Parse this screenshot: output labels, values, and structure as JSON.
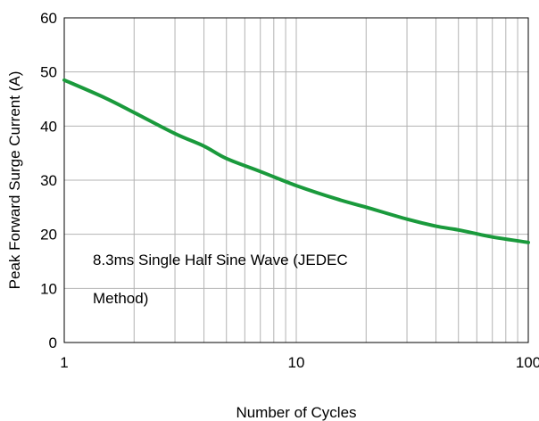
{
  "chart_data": {
    "type": "line",
    "title": "",
    "xlabel": "Number of Cycles",
    "ylabel": "Peak Forward Surge Current (A)",
    "x_scale": "log",
    "xlim": [
      1,
      100
    ],
    "ylim": [
      0,
      60
    ],
    "grid": true,
    "x_ticks": [
      {
        "value": 1,
        "label": "1"
      },
      {
        "value": 10,
        "label": "10"
      },
      {
        "value": 100,
        "label": "100"
      }
    ],
    "y_ticks": [
      {
        "value": 0,
        "label": "0"
      },
      {
        "value": 10,
        "label": "10"
      },
      {
        "value": 20,
        "label": "20"
      },
      {
        "value": 30,
        "label": "30"
      },
      {
        "value": 40,
        "label": "40"
      },
      {
        "value": 50,
        "label": "50"
      },
      {
        "value": 60,
        "label": "60"
      }
    ],
    "annotation": {
      "lines": [
        "8.3ms Single Half Sine Wave (JEDEC",
        "Method)"
      ]
    },
    "series": [
      {
        "color": "#1a9a3c",
        "x": [
          1,
          1.5,
          2,
          3,
          4,
          5,
          7,
          10,
          15,
          20,
          30,
          40,
          50,
          70,
          100
        ],
        "y": [
          48.5,
          45.2,
          42.5,
          38.6,
          36.3,
          34.0,
          31.6,
          29.0,
          26.5,
          25.0,
          22.8,
          21.5,
          20.8,
          19.5,
          18.5
        ]
      }
    ]
  }
}
